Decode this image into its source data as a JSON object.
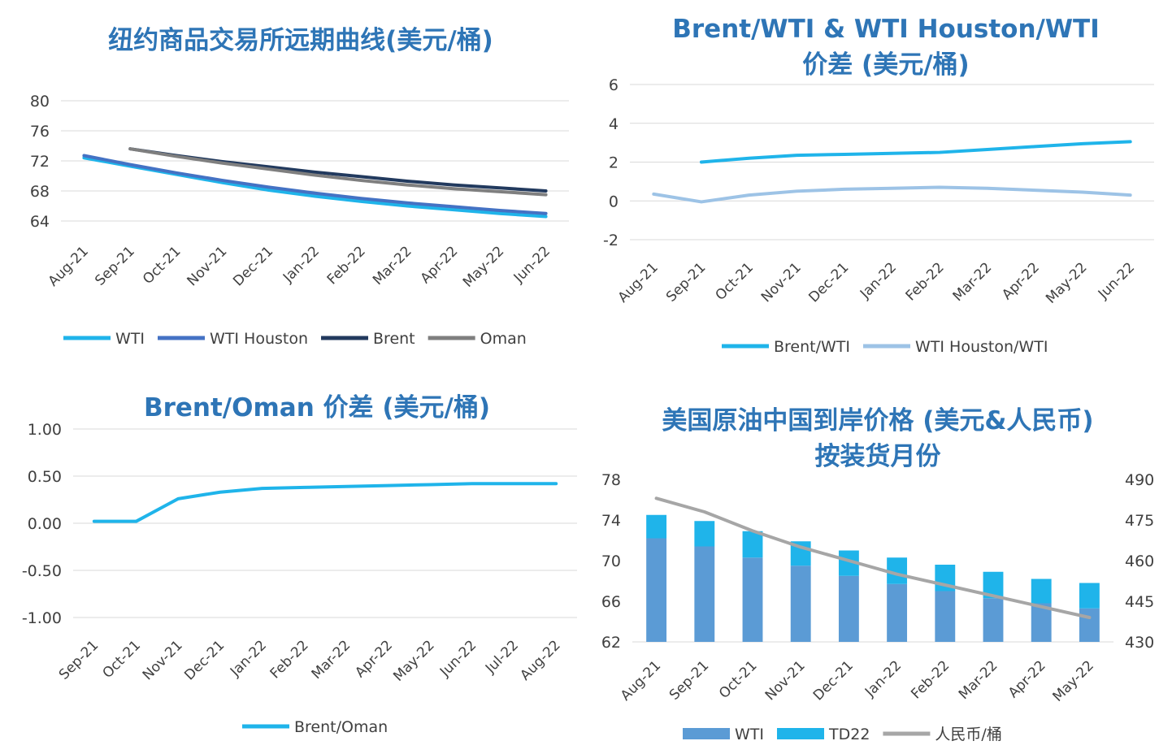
{
  "chart_data": [
    {
      "type": "line",
      "title": "纽约商品交易所远期曲线(美元/桶)",
      "categories": [
        "Aug-21",
        "Sep-21",
        "Oct-21",
        "Nov-21",
        "Dec-21",
        "Jan-22",
        "Feb-22",
        "Mar-22",
        "Apr-22",
        "May-22",
        "Jun-22"
      ],
      "ylim": [
        64,
        80
      ],
      "yticks": [
        "80",
        "76",
        "72",
        "68",
        "64"
      ],
      "grid": true,
      "legend": "bottom",
      "series": [
        {
          "name": "WTI",
          "color": "#1fb4ea",
          "values": [
            72.4,
            71.3,
            70.2,
            69.1,
            68.1,
            67.3,
            66.6,
            66.0,
            65.5,
            65.0,
            64.6
          ]
        },
        {
          "name": "WTI Houston",
          "color": "#4472c4",
          "values": [
            72.7,
            71.5,
            70.4,
            69.4,
            68.5,
            67.7,
            67.0,
            66.4,
            65.9,
            65.4,
            65.0
          ]
        },
        {
          "name": "Brent",
          "color": "#223a5e",
          "values": [
            null,
            73.6,
            72.7,
            71.9,
            71.2,
            70.5,
            69.9,
            69.3,
            68.8,
            68.4,
            68.0
          ]
        },
        {
          "name": "Oman",
          "color": "#7f7f7f",
          "values": [
            null,
            73.6,
            72.6,
            71.7,
            70.9,
            70.1,
            69.4,
            68.8,
            68.3,
            67.9,
            67.5
          ]
        }
      ]
    },
    {
      "type": "line",
      "title": "Brent/WTI & WTI Houston/WTI 价差 (美元/桶)",
      "categories": [
        "Aug-21",
        "Sep-21",
        "Oct-21",
        "Nov-21",
        "Dec-21",
        "Jan-22",
        "Feb-22",
        "Mar-22",
        "Apr-22",
        "May-22",
        "Jun-22"
      ],
      "ylim": [
        -2,
        6
      ],
      "yticks": [
        "6",
        "4",
        "2",
        "0",
        "-2"
      ],
      "grid": true,
      "legend": "bottom",
      "series": [
        {
          "name": "Brent/WTI",
          "color": "#1fb4ea",
          "values": [
            null,
            2.0,
            2.2,
            2.35,
            2.4,
            2.45,
            2.5,
            2.65,
            2.8,
            2.95,
            3.05
          ]
        },
        {
          "name": "WTI Houston/WTI",
          "color": "#9dc3e6",
          "values": [
            0.35,
            -0.05,
            0.3,
            0.5,
            0.6,
            0.65,
            0.7,
            0.65,
            0.55,
            0.45,
            0.3
          ]
        }
      ]
    },
    {
      "type": "line",
      "title": "Brent/Oman 价差 (美元/桶)",
      "categories": [
        "Sep-21",
        "Oct-21",
        "Nov-21",
        "Dec-21",
        "Jan-22",
        "Feb-22",
        "Mar-22",
        "Apr-22",
        "May-22",
        "Jun-22",
        "Jul-22",
        "Aug-22"
      ],
      "ylim": [
        -1.0,
        1.0
      ],
      "yticks": [
        "1.00",
        "0.50",
        "0.00",
        "-0.50",
        "-1.00"
      ],
      "grid": true,
      "legend": "bottom",
      "series": [
        {
          "name": "Brent/Oman",
          "color": "#1fb4ea",
          "values": [
            0.02,
            0.02,
            0.26,
            0.33,
            0.37,
            0.38,
            0.39,
            0.4,
            0.41,
            0.42,
            0.42,
            0.42
          ]
        }
      ]
    },
    {
      "type": "bar",
      "title": "美国原油中国到岸价格 (美元&人民币) 按装货月份",
      "categories": [
        "Aug-21",
        "Sep-21",
        "Oct-21",
        "Nov-21",
        "Dec-21",
        "Jan-22",
        "Feb-22",
        "Mar-22",
        "Apr-22",
        "May-22"
      ],
      "ylim": [
        62,
        78
      ],
      "yticks": [
        "78",
        "74",
        "70",
        "66",
        "62"
      ],
      "y2lim": [
        430,
        490
      ],
      "y2ticks": [
        "490",
        "475",
        "460",
        "445",
        "430"
      ],
      "stacked": true,
      "legend": "bottom",
      "series": [
        {
          "name": "WTI",
          "color": "#5b9bd5",
          "values": [
            72.2,
            71.4,
            70.3,
            69.5,
            68.5,
            67.7,
            67.0,
            66.3,
            65.8,
            65.3
          ]
        },
        {
          "name": "TD22",
          "color": "#1fb4ea",
          "values": [
            2.3,
            2.5,
            2.6,
            2.4,
            2.5,
            2.6,
            2.6,
            2.6,
            2.4,
            2.5
          ]
        },
        {
          "name": "人民币/桶",
          "color": "#a6a6a6",
          "axis": "right",
          "values": [
            483,
            478,
            471,
            465,
            460,
            455,
            451,
            447,
            443,
            439
          ]
        }
      ]
    }
  ]
}
